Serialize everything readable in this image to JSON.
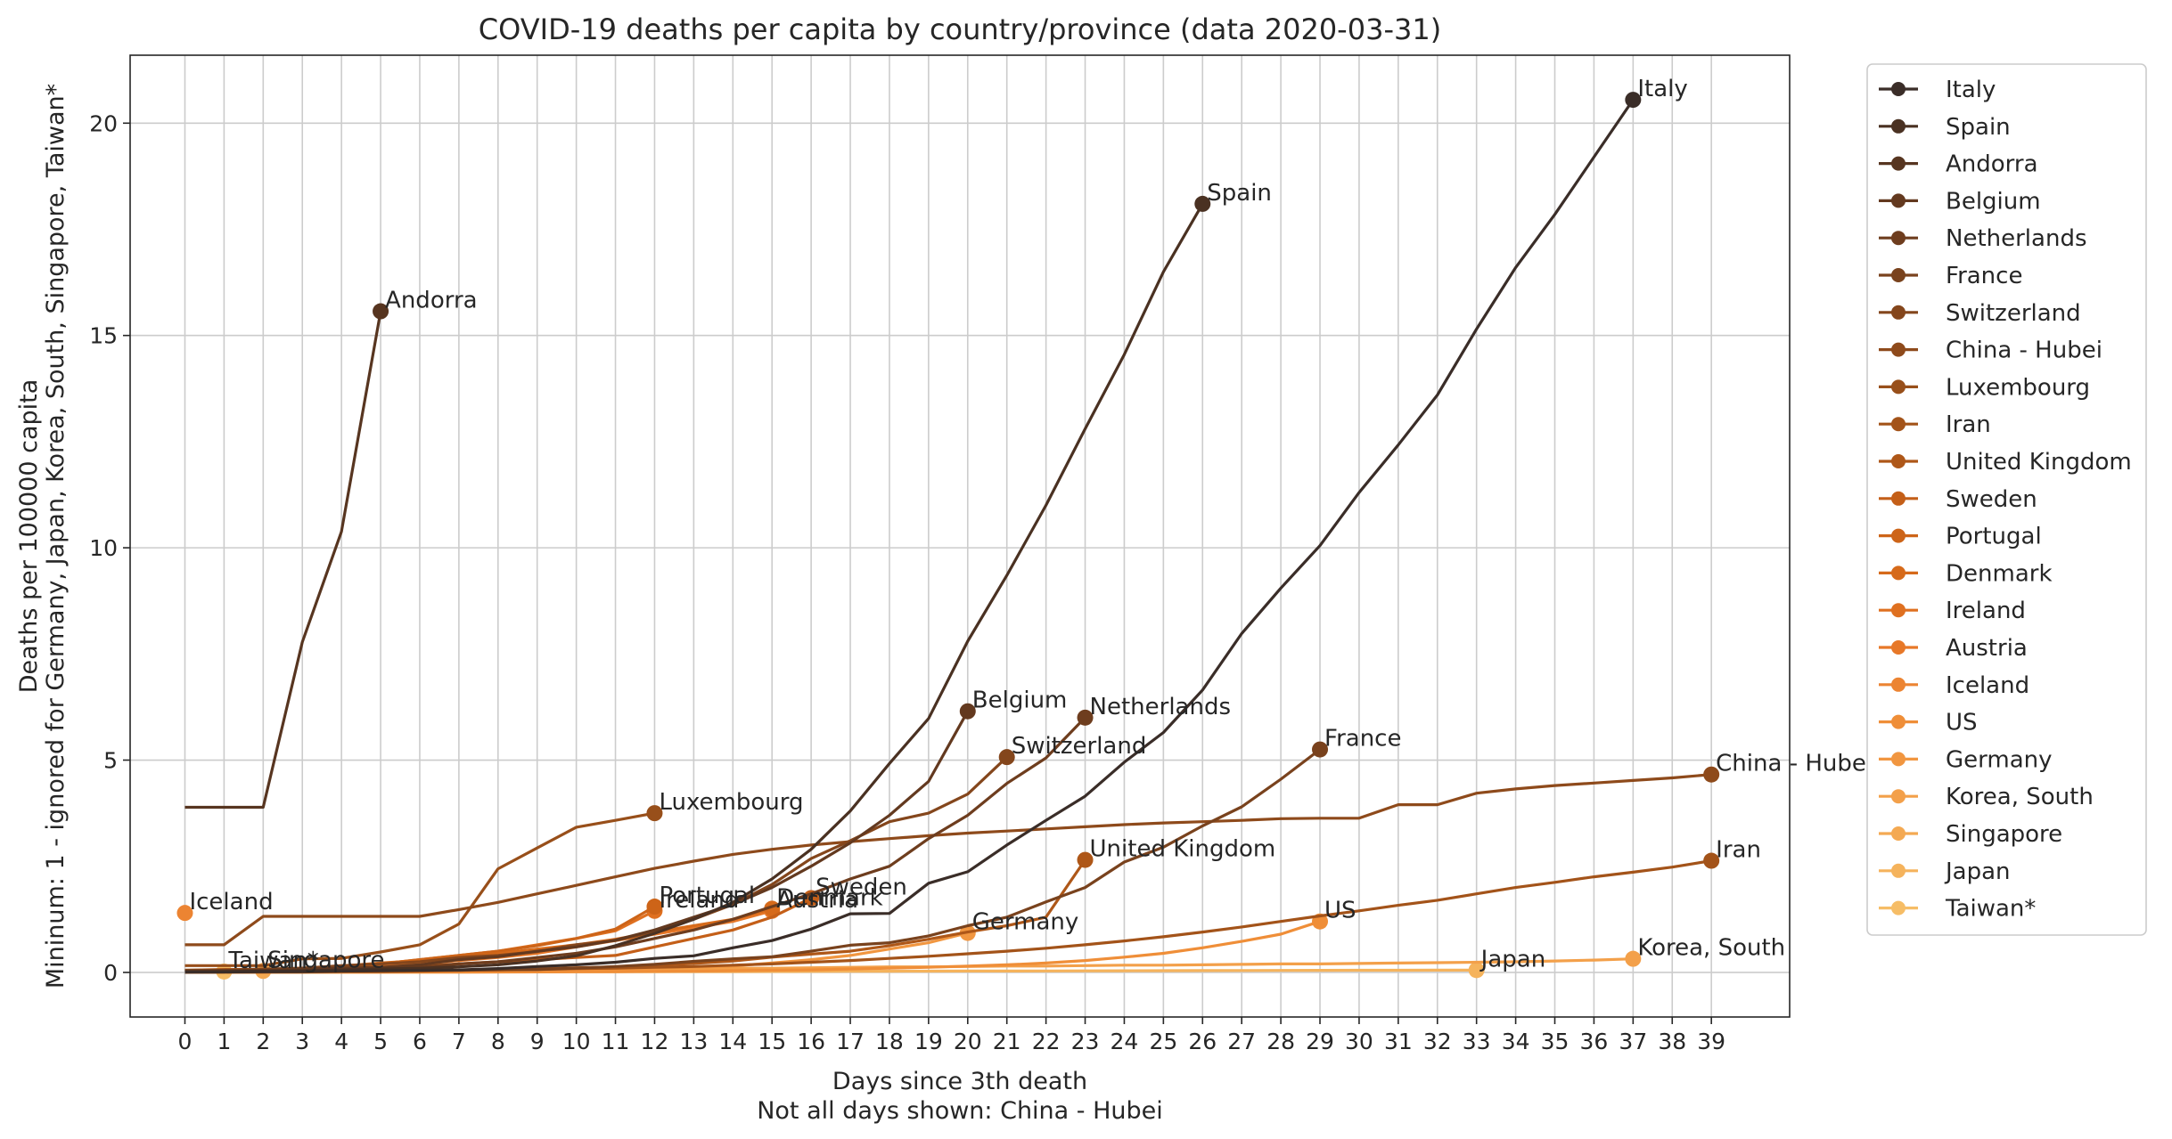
{
  "chart_data": {
    "type": "line",
    "title": "COVID-19 deaths per capita by country/province (data 2020-03-31)",
    "xlabel": "Days since 3th death",
    "xlabel2": "Not all days shown: China - Hubei",
    "ylabel": "Mininum: 1 - ignored for Germany, Japan, Korea, South, Singapore, Taiwan*",
    "ylabel2": "Deaths per 100000 capita",
    "xlim": [
      -1.4,
      41.0
    ],
    "ylim": [
      -1.05,
      21.6
    ],
    "xticks": [
      0,
      1,
      2,
      3,
      4,
      5,
      6,
      7,
      8,
      9,
      10,
      11,
      12,
      13,
      14,
      15,
      16,
      17,
      18,
      19,
      20,
      21,
      22,
      23,
      24,
      25,
      26,
      27,
      28,
      29,
      30,
      31,
      32,
      33,
      34,
      35,
      36,
      37,
      38,
      39
    ],
    "yticks": [
      0,
      5,
      10,
      15,
      20
    ],
    "grid": true,
    "legend_position": "outside right",
    "series": [
      {
        "name": "Italy",
        "color": "#3a2d28",
        "label": "Italy",
        "x": [
          0,
          1,
          2,
          3,
          4,
          5,
          6,
          7,
          8,
          9,
          10,
          11,
          12,
          13,
          14,
          15,
          16,
          17,
          18,
          19,
          20,
          21,
          22,
          23,
          24,
          25,
          26,
          27,
          28,
          29,
          30,
          31,
          32,
          33,
          34,
          35,
          36,
          37
        ],
        "y": [
          0.01,
          0.01,
          0.02,
          0.02,
          0.03,
          0.04,
          0.05,
          0.06,
          0.09,
          0.14,
          0.18,
          0.24,
          0.33,
          0.39,
          0.58,
          0.75,
          1.02,
          1.38,
          1.39,
          2.1,
          2.37,
          3.0,
          3.58,
          4.15,
          4.95,
          5.65,
          6.65,
          7.98,
          9.05,
          10.05,
          11.3,
          12.42,
          13.6,
          15.15,
          16.6,
          17.85,
          19.2,
          20.55
        ]
      },
      {
        "name": "Spain",
        "color": "#4a3122",
        "label": "Spain",
        "x": [
          0,
          1,
          2,
          3,
          4,
          5,
          6,
          7,
          8,
          9,
          10,
          11,
          12,
          13,
          14,
          15,
          16,
          17,
          18,
          19,
          20,
          21,
          22,
          23,
          24,
          25,
          26
        ],
        "y": [
          0.01,
          0.02,
          0.03,
          0.04,
          0.06,
          0.08,
          0.1,
          0.13,
          0.18,
          0.27,
          0.39,
          0.63,
          0.92,
          1.25,
          1.65,
          2.2,
          2.9,
          3.8,
          4.92,
          5.98,
          7.8,
          9.35,
          11.0,
          12.8,
          14.55,
          16.5,
          18.1
        ]
      },
      {
        "name": "Andorra",
        "color": "#573520",
        "label": "Andorra",
        "x": [
          0,
          1,
          2,
          3,
          4,
          5
        ],
        "y": [
          3.89,
          3.89,
          3.89,
          7.78,
          10.38,
          15.57
        ]
      },
      {
        "name": "Belgium",
        "color": "#63391f",
        "label": "Belgium",
        "x": [
          0,
          1,
          2,
          3,
          4,
          5,
          6,
          7,
          8,
          9,
          10,
          11,
          12,
          13,
          14,
          15,
          16,
          17,
          18,
          19,
          20
        ],
        "y": [
          0.03,
          0.04,
          0.05,
          0.08,
          0.1,
          0.12,
          0.18,
          0.3,
          0.37,
          0.5,
          0.6,
          0.76,
          1.0,
          1.3,
          1.6,
          2.0,
          2.5,
          3.05,
          3.7,
          4.5,
          6.15
        ]
      },
      {
        "name": "Netherlands",
        "color": "#6e3d1e",
        "label": "Netherlands",
        "x": [
          0,
          1,
          2,
          3,
          4,
          5,
          6,
          7,
          8,
          9,
          10,
          11,
          12,
          13,
          14,
          15,
          16,
          17,
          18,
          19,
          20,
          21,
          22,
          23
        ],
        "y": [
          0.02,
          0.03,
          0.03,
          0.05,
          0.06,
          0.1,
          0.12,
          0.2,
          0.25,
          0.35,
          0.45,
          0.6,
          0.8,
          1.0,
          1.25,
          1.55,
          1.85,
          2.2,
          2.5,
          3.15,
          3.7,
          4.45,
          5.05,
          6.0
        ]
      },
      {
        "name": "France",
        "color": "#79421d",
        "label": "France",
        "x": [
          0,
          1,
          2,
          3,
          4,
          5,
          6,
          7,
          8,
          9,
          10,
          11,
          12,
          13,
          14,
          15,
          16,
          17,
          18,
          19,
          20,
          21,
          22,
          23,
          24,
          25,
          26,
          27,
          28,
          29
        ],
        "y": [
          0.005,
          0.01,
          0.01,
          0.02,
          0.03,
          0.04,
          0.05,
          0.05,
          0.07,
          0.07,
          0.1,
          0.14,
          0.19,
          0.26,
          0.32,
          0.37,
          0.5,
          0.64,
          0.7,
          0.86,
          1.1,
          1.3,
          1.66,
          2.0,
          2.6,
          2.95,
          3.45,
          3.9,
          4.55,
          5.25
        ]
      },
      {
        "name": "Switzerland",
        "color": "#84461c",
        "label": "Switzerland",
        "x": [
          0,
          1,
          2,
          3,
          4,
          5,
          6,
          7,
          8,
          9,
          10,
          11,
          12,
          13,
          14,
          15,
          16,
          17,
          18,
          19,
          20,
          21
        ],
        "y": [
          0.05,
          0.06,
          0.08,
          0.1,
          0.16,
          0.2,
          0.25,
          0.35,
          0.4,
          0.49,
          0.65,
          0.75,
          0.97,
          1.25,
          1.6,
          2.07,
          2.68,
          3.1,
          3.55,
          3.75,
          4.2,
          5.07
        ]
      },
      {
        "name": "China - Hubei",
        "color": "#8e4a1b",
        "label": "China - Hubei",
        "x": [
          0,
          1,
          2,
          3,
          4,
          5,
          6,
          7,
          8,
          9,
          10,
          11,
          12,
          13,
          14,
          15,
          16,
          17,
          18,
          19,
          20,
          21,
          22,
          23,
          24,
          25,
          26,
          27,
          28,
          29,
          30,
          31,
          32,
          33,
          34,
          35,
          36,
          37,
          38,
          39
        ],
        "y": [
          0.65,
          0.65,
          1.32,
          1.32,
          1.32,
          1.32,
          1.32,
          1.48,
          1.65,
          1.85,
          2.05,
          2.25,
          2.45,
          2.62,
          2.78,
          2.9,
          3.0,
          3.08,
          3.15,
          3.22,
          3.28,
          3.33,
          3.38,
          3.43,
          3.48,
          3.52,
          3.55,
          3.58,
          3.62,
          3.63,
          3.63,
          3.95,
          3.95,
          4.22,
          4.32,
          4.4,
          4.46,
          4.52,
          4.58,
          4.66
        ]
      },
      {
        "name": "Luxembourg",
        "color": "#984f1a",
        "label": "Luxembourg",
        "x": [
          0,
          1,
          2,
          3,
          4,
          5,
          6,
          7,
          8,
          9,
          10,
          11,
          12
        ],
        "y": [
          0.16,
          0.16,
          0.16,
          0.32,
          0.33,
          0.48,
          0.65,
          1.14,
          2.44,
          2.93,
          3.42,
          3.58,
          3.75
        ]
      },
      {
        "name": "Iran",
        "color": "#a35319",
        "label": "Iran",
        "x": [
          0,
          1,
          2,
          3,
          4,
          5,
          6,
          7,
          8,
          9,
          10,
          11,
          12,
          13,
          14,
          15,
          16,
          17,
          18,
          19,
          20,
          21,
          22,
          23,
          24,
          25,
          26,
          27,
          28,
          29,
          30,
          31,
          32,
          33,
          34,
          35,
          36,
          37,
          38,
          39
        ],
        "y": [
          0.004,
          0.01,
          0.02,
          0.02,
          0.03,
          0.03,
          0.04,
          0.05,
          0.06,
          0.07,
          0.09,
          0.1,
          0.12,
          0.14,
          0.17,
          0.2,
          0.24,
          0.28,
          0.33,
          0.38,
          0.44,
          0.5,
          0.57,
          0.65,
          0.74,
          0.84,
          0.95,
          1.07,
          1.2,
          1.33,
          1.45,
          1.58,
          1.7,
          1.85,
          2.0,
          2.12,
          2.25,
          2.36,
          2.48,
          2.63
        ]
      },
      {
        "name": "United Kingdom",
        "color": "#ae5718",
        "label": "United Kingdom",
        "x": [
          0,
          1,
          2,
          3,
          4,
          5,
          6,
          7,
          8,
          9,
          10,
          11,
          12,
          13,
          14,
          15,
          16,
          17,
          18,
          19,
          20,
          21,
          22,
          23
        ],
        "y": [
          0.005,
          0.01,
          0.01,
          0.01,
          0.02,
          0.02,
          0.03,
          0.05,
          0.06,
          0.08,
          0.11,
          0.13,
          0.17,
          0.21,
          0.27,
          0.36,
          0.43,
          0.5,
          0.63,
          0.78,
          0.95,
          1.1,
          1.3,
          2.65
        ]
      },
      {
        "name": "Sweden",
        "color": "#c45f18",
        "label": "Sweden",
        "x": [
          0,
          1,
          2,
          3,
          4,
          5,
          6,
          7,
          8,
          9,
          10,
          11,
          12,
          13,
          14,
          15,
          16
        ],
        "y": [
          0.01,
          0.02,
          0.02,
          0.03,
          0.07,
          0.1,
          0.15,
          0.2,
          0.25,
          0.3,
          0.35,
          0.4,
          0.6,
          0.8,
          1.0,
          1.3,
          1.75
        ]
      },
      {
        "name": "Portugal",
        "color": "#cd6418",
        "label": "Portugal",
        "x": [
          0,
          1,
          2,
          3,
          4,
          5,
          6,
          7,
          8,
          9,
          10,
          11,
          12
        ],
        "y": [
          0.02,
          0.04,
          0.05,
          0.1,
          0.14,
          0.2,
          0.3,
          0.4,
          0.5,
          0.63,
          0.8,
          1.02,
          1.55
        ]
      },
      {
        "name": "Denmark",
        "color": "#d66a1a",
        "label": "Denmark",
        "x": [
          0,
          1,
          2,
          3,
          4,
          5,
          6,
          7,
          8,
          9,
          10,
          11,
          12,
          13,
          14,
          15
        ],
        "y": [
          0.05,
          0.07,
          0.07,
          0.1,
          0.15,
          0.22,
          0.28,
          0.35,
          0.45,
          0.55,
          0.65,
          0.78,
          0.95,
          1.1,
          1.25,
          1.5
        ]
      },
      {
        "name": "Ireland",
        "color": "#df7020",
        "label": "Ireland",
        "x": [
          0,
          1,
          2,
          3,
          4,
          5,
          6,
          7,
          8,
          9,
          10,
          11,
          12
        ],
        "y": [
          0.02,
          0.04,
          0.06,
          0.1,
          0.15,
          0.2,
          0.3,
          0.4,
          0.5,
          0.65,
          0.8,
          0.98,
          1.45
        ]
      },
      {
        "name": "Austria",
        "color": "#e77828",
        "label": "Austria",
        "x": [
          0,
          1,
          2,
          3,
          4,
          5,
          6,
          7,
          8,
          9,
          10,
          11,
          12,
          13,
          14,
          15
        ],
        "y": [
          0.03,
          0.05,
          0.07,
          0.08,
          0.1,
          0.14,
          0.2,
          0.28,
          0.35,
          0.45,
          0.6,
          0.75,
          0.9,
          1.05,
          1.2,
          1.45
        ]
      },
      {
        "name": "Iceland",
        "color": "#ec8432",
        "label": "Iceland",
        "x": [
          0
        ],
        "y": [
          1.4
        ]
      },
      {
        "name": "US",
        "color": "#ef8e38",
        "label": "US",
        "x": [
          0,
          1,
          2,
          3,
          4,
          5,
          6,
          7,
          8,
          9,
          10,
          11,
          12,
          13,
          14,
          15,
          16,
          17,
          18,
          19,
          20,
          21,
          22,
          23,
          24,
          25,
          26,
          27,
          28,
          29
        ],
        "y": [
          0.003,
          0.003,
          0.004,
          0.004,
          0.005,
          0.006,
          0.007,
          0.008,
          0.01,
          0.012,
          0.015,
          0.018,
          0.025,
          0.03,
          0.04,
          0.05,
          0.06,
          0.08,
          0.1,
          0.12,
          0.15,
          0.18,
          0.22,
          0.28,
          0.36,
          0.45,
          0.58,
          0.73,
          0.9,
          1.2
        ]
      },
      {
        "name": "Germany",
        "color": "#f19640",
        "label": "Germany",
        "x": [
          0,
          1,
          2,
          3,
          4,
          5,
          6,
          7,
          8,
          9,
          10,
          11,
          12,
          13,
          14,
          15,
          16,
          17,
          18,
          19,
          20
        ],
        "y": [
          0.004,
          0.005,
          0.005,
          0.006,
          0.01,
          0.01,
          0.015,
          0.02,
          0.03,
          0.04,
          0.05,
          0.07,
          0.1,
          0.12,
          0.15,
          0.22,
          0.3,
          0.4,
          0.55,
          0.7,
          0.93
        ]
      },
      {
        "name": "Korea, South",
        "color": "#f3a04a",
        "label": "Korea, South",
        "x": [
          0,
          1,
          2,
          3,
          4,
          5,
          6,
          7,
          8,
          9,
          10,
          11,
          12,
          13,
          14,
          15,
          16,
          17,
          18,
          19,
          20,
          21,
          22,
          23,
          24,
          25,
          26,
          27,
          28,
          29,
          30,
          31,
          32,
          33,
          34,
          35,
          36,
          37
        ],
        "y": [
          0.006,
          0.01,
          0.02,
          0.02,
          0.03,
          0.04,
          0.05,
          0.06,
          0.06,
          0.07,
          0.07,
          0.08,
          0.08,
          0.09,
          0.1,
          0.1,
          0.11,
          0.12,
          0.13,
          0.13,
          0.14,
          0.15,
          0.15,
          0.16,
          0.17,
          0.17,
          0.18,
          0.19,
          0.2,
          0.2,
          0.21,
          0.22,
          0.23,
          0.24,
          0.25,
          0.27,
          0.29,
          0.32
        ]
      },
      {
        "name": "Singapore",
        "color": "#f4a952",
        "label": "Singapore",
        "x": [
          0,
          1,
          2
        ],
        "y": [
          0.02,
          0.03,
          0.035
        ]
      },
      {
        "name": "Japan",
        "color": "#f5b35c",
        "label": "Japan",
        "x": [
          0,
          1,
          2,
          3,
          4,
          5,
          6,
          7,
          8,
          9,
          10,
          11,
          12,
          13,
          14,
          15,
          16,
          17,
          18,
          19,
          20,
          21,
          22,
          23,
          24,
          25,
          26,
          27,
          28,
          29,
          30,
          31,
          32,
          33
        ],
        "y": [
          0.002,
          0.003,
          0.004,
          0.005,
          0.006,
          0.007,
          0.008,
          0.01,
          0.011,
          0.012,
          0.013,
          0.015,
          0.017,
          0.019,
          0.02,
          0.022,
          0.024,
          0.026,
          0.028,
          0.03,
          0.032,
          0.033,
          0.035,
          0.037,
          0.038,
          0.04,
          0.042,
          0.044,
          0.046,
          0.048,
          0.05,
          0.052,
          0.053,
          0.054
        ]
      },
      {
        "name": "Taiwan*",
        "color": "#f6bd66",
        "label": "Taiwan*",
        "x": [
          0,
          1
        ],
        "y": [
          0.01,
          0.02
        ]
      }
    ]
  }
}
